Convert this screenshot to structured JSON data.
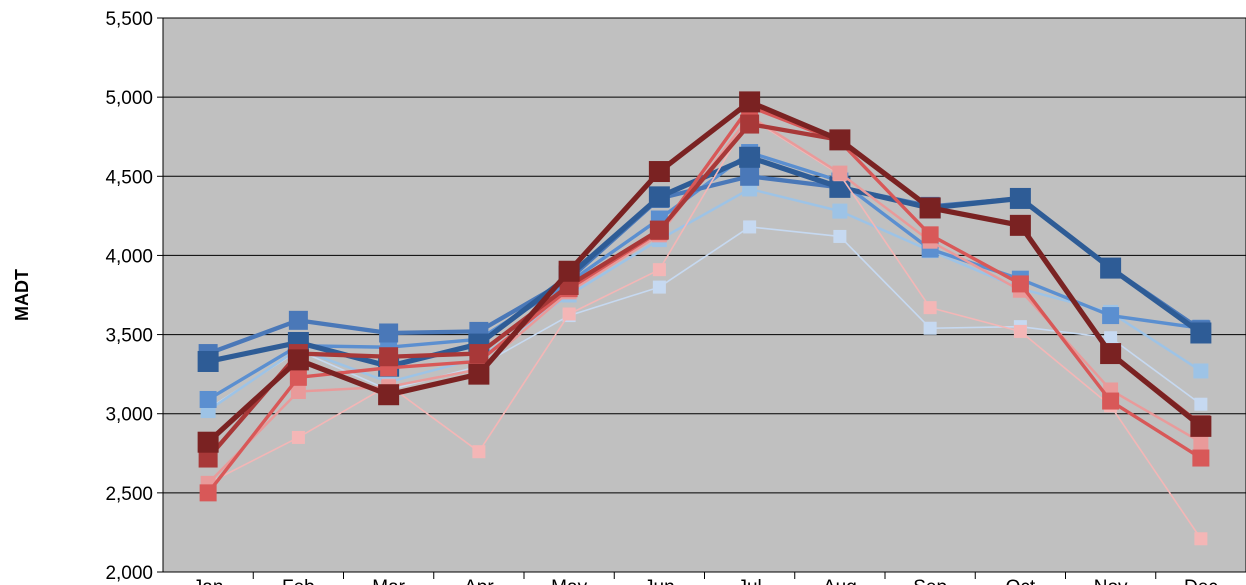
{
  "chart_data": {
    "type": "line",
    "title": "",
    "xlabel": "",
    "ylabel": "MADT",
    "categories": [
      "Jan",
      "Feb",
      "Mar",
      "Apr",
      "May",
      "Jun",
      "Jul",
      "Aug",
      "Sep",
      "Oct",
      "Nov",
      "Dec"
    ],
    "ylim": [
      2000,
      5500
    ],
    "yticks": [
      2000,
      2500,
      3000,
      3500,
      4000,
      4500,
      5000,
      5500
    ],
    "ytick_labels": [
      "2,000",
      "2,500",
      "3,000",
      "3,500",
      "4,000",
      "4,500",
      "5,000",
      "5,500"
    ],
    "grid": true,
    "legend": "none",
    "plot_background": "#c0c0c0",
    "series": [
      {
        "color": "#c6d9f1",
        "values": [
          3030,
          3400,
          3150,
          3300,
          3620,
          3800,
          4180,
          4120,
          3540,
          3550,
          3480,
          3060
        ]
      },
      {
        "color": "#9dc3e6",
        "values": [
          3020,
          3410,
          3200,
          3350,
          3750,
          4100,
          4420,
          4280,
          4030,
          3790,
          3640,
          3270
        ]
      },
      {
        "color": "#5b8fd0",
        "values": [
          3090,
          3430,
          3420,
          3470,
          3830,
          4230,
          4650,
          4470,
          4040,
          3850,
          3620,
          3540
        ]
      },
      {
        "color": "#4a78b8",
        "values": [
          3380,
          3590,
          3510,
          3520,
          3850,
          4360,
          4500,
          4430,
          4310,
          4360,
          3920,
          3530
        ]
      },
      {
        "color": "#2e5c96",
        "values": [
          3330,
          3450,
          3300,
          3440,
          3870,
          4370,
          4620,
          4430,
          4300,
          4360,
          3920,
          3510
        ]
      },
      {
        "color": "#f4b6b6",
        "values": [
          2560,
          2850,
          3180,
          2760,
          3630,
          3910,
          4870,
          4510,
          3670,
          3520,
          3050,
          2210
        ]
      },
      {
        "color": "#e99a9a",
        "values": [
          2560,
          3140,
          3170,
          3280,
          3770,
          4130,
          4880,
          4520,
          4090,
          3780,
          3150,
          2820
        ]
      },
      {
        "color": "#d85858",
        "values": [
          2500,
          3230,
          3290,
          3330,
          3790,
          4150,
          4940,
          4720,
          4130,
          3820,
          3080,
          2720
        ]
      },
      {
        "color": "#a83838",
        "values": [
          2720,
          3380,
          3360,
          3380,
          3810,
          4160,
          4830,
          4730,
          4300,
          4190,
          3380,
          2930
        ]
      },
      {
        "color": "#7a2222",
        "values": [
          2820,
          3340,
          3120,
          3250,
          3900,
          4530,
          4970,
          4730,
          4300,
          4190,
          3380,
          2920
        ]
      }
    ]
  }
}
